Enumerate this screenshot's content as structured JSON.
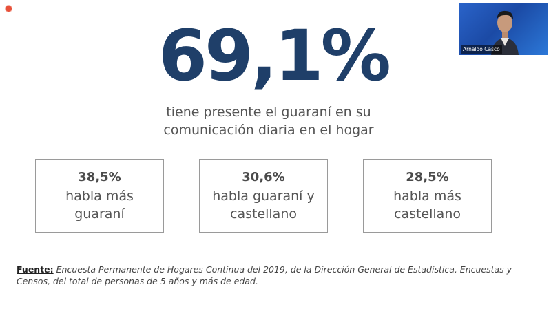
{
  "recording": {
    "indicator_color": "#e8503a"
  },
  "headline": {
    "value": "69,1%",
    "color": "#1f3f69",
    "subtitle_line1": "tiene presente el guaraní en su",
    "subtitle_line2": "comunicación diaria en el hogar"
  },
  "stats": [
    {
      "percent": "38,5%",
      "line1": "habla más",
      "line2": "guaraní"
    },
    {
      "percent": "30,6%",
      "line1": "habla guaraní y",
      "line2": "castellano"
    },
    {
      "percent": "28,5%",
      "line1": "habla más",
      "line2": "castellano"
    }
  ],
  "source": {
    "label": "Fuente:",
    "text": "Encuesta Permanente de Hogares Continua del 2019, de la Dirección General de Estadística, Encuestas y Censos, del total de personas de 5 años y más de edad."
  },
  "participant": {
    "name": "Arnaldo Casco",
    "icon": "person-icon"
  }
}
